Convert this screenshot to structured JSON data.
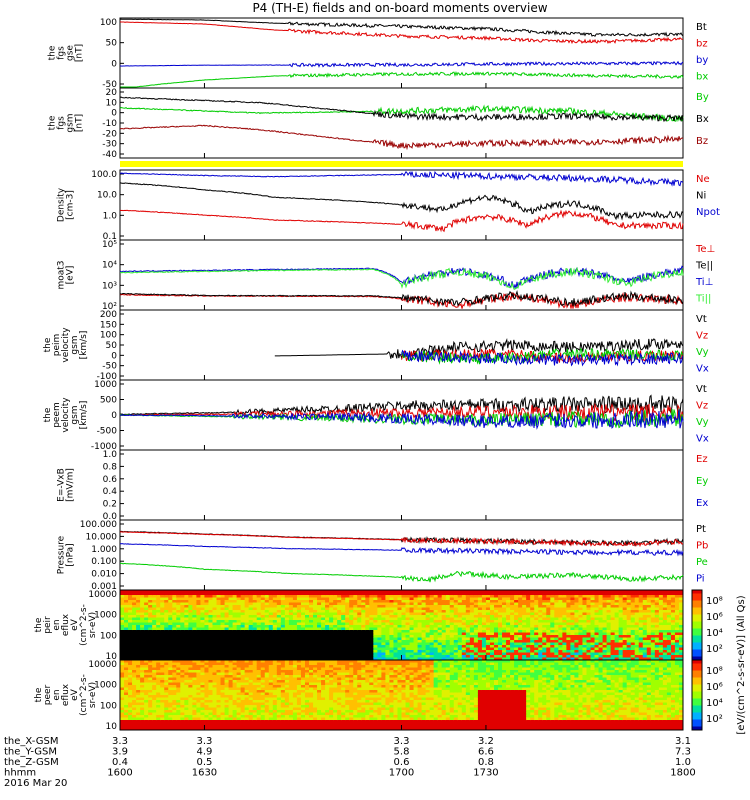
{
  "title": "P4 (TH-E) fields and on-board moments overview",
  "colors": {
    "black": "#000000",
    "red": "#e00000",
    "darkred": "#990000",
    "blue": "#0000d0",
    "green": "#00cc00",
    "lime": "#33ee33",
    "yellow": "#ffff00"
  },
  "chart_data": [
    {
      "type": "line",
      "ylabel": [
        "the",
        "fgs",
        "gse",
        "[nT]"
      ],
      "ylim": [
        -70,
        105
      ],
      "yticks": [
        "100",
        "50",
        "0",
        "-50"
      ],
      "series": [
        {
          "name": "Bt",
          "color": "#000000",
          "values": [
            [
              1600,
              102
            ],
            [
              1630,
              100
            ],
            [
              1655,
              92
            ],
            [
              1700,
              84
            ],
            [
              1730,
              78
            ],
            [
              1750,
              70
            ],
            [
              1760,
              66
            ],
            [
              1770,
              63
            ],
            [
              1800,
              64
            ]
          ]
        },
        {
          "name": "bz",
          "color": "#e00000",
          "values": [
            [
              1600,
              95
            ],
            [
              1630,
              90
            ],
            [
              1655,
              75
            ],
            [
              1700,
              60
            ],
            [
              1730,
              55
            ],
            [
              1750,
              48
            ],
            [
              1770,
              46
            ],
            [
              1800,
              52
            ]
          ]
        },
        {
          "name": "by",
          "color": "#0000d0",
          "values": [
            [
              1600,
              -15
            ],
            [
              1630,
              -13
            ],
            [
              1700,
              -12
            ],
            [
              1730,
              -10
            ],
            [
              1800,
              -8
            ]
          ]
        },
        {
          "name": "bx",
          "color": "#00cc00",
          "values": [
            [
              1600,
              -72
            ],
            [
              1615,
              -60
            ],
            [
              1630,
              -50
            ],
            [
              1655,
              -40
            ],
            [
              1700,
              -35
            ],
            [
              1730,
              -34
            ],
            [
              1760,
              -38
            ],
            [
              1800,
              -42
            ]
          ]
        }
      ]
    },
    {
      "type": "line",
      "ylabel": [
        "the",
        "fgs",
        "gsm",
        "[nT]"
      ],
      "ylim": [
        -45,
        22
      ],
      "yticks": [
        "20",
        "10",
        "0",
        "-10",
        "-20",
        "-30",
        "-40"
      ],
      "series": [
        {
          "name": "By",
          "color": "#00cc00",
          "values": [
            [
              1600,
              3
            ],
            [
              1630,
              0
            ],
            [
              1650,
              -2
            ],
            [
              1700,
              0
            ],
            [
              1730,
              2
            ],
            [
              1760,
              0
            ],
            [
              1800,
              -8
            ]
          ]
        },
        {
          "name": "Bx",
          "color": "#000000",
          "values": [
            [
              1600,
              13
            ],
            [
              1630,
              10
            ],
            [
              1650,
              8
            ],
            [
              1700,
              -5
            ],
            [
              1730,
              -6
            ],
            [
              1760,
              -5
            ],
            [
              1800,
              -7
            ]
          ]
        },
        {
          "name": "Bz",
          "color": "#990000",
          "values": [
            [
              1600,
              -17
            ],
            [
              1630,
              -14
            ],
            [
              1650,
              -18
            ],
            [
              1700,
              -33
            ],
            [
              1730,
              -31
            ],
            [
              1760,
              -30
            ],
            [
              1800,
              -27
            ]
          ]
        }
      ]
    },
    {
      "type": "line",
      "log": true,
      "ylabel": [
        "Density",
        "[cm-3]"
      ],
      "ylim": [
        0.05,
        300
      ],
      "yticks": [
        "100.0",
        "10.0",
        "1.0",
        "0.1"
      ],
      "series": [
        {
          "name": "Ne",
          "color": "#e00000",
          "values": [
            [
              1600,
              2
            ],
            [
              1630,
              1.1
            ],
            [
              1655,
              0.6
            ],
            [
              1700,
              0.35
            ],
            [
              1715,
              0.2
            ],
            [
              1730,
              1
            ],
            [
              1745,
              0.3
            ],
            [
              1760,
              1.5
            ],
            [
              1775,
              0.3
            ],
            [
              1800,
              0.3
            ]
          ]
        },
        {
          "name": "Ni",
          "color": "#000000",
          "values": [
            [
              1600,
              60
            ],
            [
              1630,
              25
            ],
            [
              1655,
              10
            ],
            [
              1700,
              4
            ],
            [
              1715,
              2
            ],
            [
              1730,
              10
            ],
            [
              1745,
              1.5
            ],
            [
              1760,
              5
            ],
            [
              1775,
              1
            ],
            [
              1800,
              1.2
            ]
          ]
        },
        {
          "name": "Npot",
          "color": "#0000d0",
          "values": [
            [
              1600,
              200
            ],
            [
              1630,
              150
            ],
            [
              1655,
              130
            ],
            [
              1700,
              170
            ],
            [
              1730,
              140
            ],
            [
              1760,
              110
            ],
            [
              1800,
              60
            ]
          ]
        },
        {
          "name": "",
          "color": "#000000",
          "values": []
        }
      ]
    },
    {
      "type": "line",
      "log": true,
      "ylabel": [
        "moat3",
        "[eV]"
      ],
      "ylim": [
        100,
        100000
      ],
      "yticks": [
        "10⁵",
        "10⁴",
        "10³",
        "10²"
      ],
      "series": [
        {
          "name": "Te⊥",
          "color": "#e00000",
          "values": [
            [
              1600,
              450
            ],
            [
              1630,
              400
            ],
            [
              1690,
              380
            ],
            [
              1720,
              150
            ],
            [
              1740,
              400
            ],
            [
              1760,
              150
            ],
            [
              1780,
              350
            ],
            [
              1800,
              250
            ]
          ]
        },
        {
          "name": "Te||",
          "color": "#000000",
          "values": [
            [
              1600,
              500
            ],
            [
              1630,
              420
            ],
            [
              1690,
              400
            ],
            [
              1720,
              200
            ],
            [
              1740,
              420
            ],
            [
              1760,
              200
            ],
            [
              1780,
              400
            ],
            [
              1800,
              260
            ]
          ]
        },
        {
          "name": "Ti⊥",
          "color": "#0000d0",
          "values": [
            [
              1600,
              4500
            ],
            [
              1630,
              5000
            ],
            [
              1690,
              6000
            ],
            [
              1700,
              1500
            ],
            [
              1720,
              5000
            ],
            [
              1740,
              1000
            ],
            [
              1760,
              5000
            ],
            [
              1780,
              1500
            ],
            [
              1800,
              5000
            ]
          ]
        },
        {
          "name": "Ti||",
          "color": "#33ee33",
          "values": [
            [
              1600,
              4000
            ],
            [
              1630,
              4500
            ],
            [
              1690,
              5500
            ],
            [
              1700,
              1200
            ],
            [
              1720,
              4500
            ],
            [
              1740,
              900
            ],
            [
              1760,
              4500
            ],
            [
              1780,
              1200
            ],
            [
              1800,
              4500
            ]
          ]
        }
      ]
    },
    {
      "type": "line",
      "ylabel": [
        "the",
        "peim",
        "velocity",
        "gsm",
        "[km/s]"
      ],
      "ylim": [
        -110,
        210
      ],
      "yticks": [
        "200",
        "150",
        "100",
        "50",
        "0",
        "-50",
        "-100"
      ],
      "series": [
        {
          "name": "Vt",
          "color": "#000000",
          "values": [
            [
              1655,
              0
            ],
            [
              1700,
              10
            ],
            [
              1720,
              40
            ],
            [
              1740,
              50
            ],
            [
              1760,
              40
            ],
            [
              1800,
              60
            ]
          ]
        },
        {
          "name": "Vz",
          "color": "#e00000",
          "values": [
            [
              1700,
              0
            ],
            [
              1730,
              10
            ],
            [
              1760,
              -10
            ],
            [
              1800,
              5
            ]
          ]
        },
        {
          "name": "Vy",
          "color": "#00cc00",
          "values": [
            [
              1700,
              0
            ],
            [
              1730,
              -15
            ],
            [
              1760,
              10
            ],
            [
              1800,
              0
            ]
          ]
        },
        {
          "name": "Vx",
          "color": "#0000d0",
          "values": [
            [
              1700,
              0
            ],
            [
              1730,
              -10
            ],
            [
              1760,
              -20
            ],
            [
              1800,
              -10
            ]
          ]
        }
      ]
    },
    {
      "type": "line",
      "ylabel": [
        "the",
        "peem",
        "velocity",
        "gsm",
        "[km/s]"
      ],
      "ylim": [
        -1050,
        1050
      ],
      "yticks": [
        "1000",
        "500",
        "0",
        "-500",
        "-1000"
      ],
      "series": [
        {
          "name": "Vt",
          "color": "#000000",
          "values": [
            [
              1600,
              20
            ],
            [
              1640,
              80
            ],
            [
              1680,
              200
            ],
            [
              1700,
              280
            ],
            [
              1730,
              300
            ],
            [
              1760,
              320
            ],
            [
              1800,
              300
            ]
          ]
        },
        {
          "name": "Vz",
          "color": "#e00000",
          "values": [
            [
              1600,
              0
            ],
            [
              1680,
              50
            ],
            [
              1730,
              100
            ],
            [
              1800,
              50
            ]
          ]
        },
        {
          "name": "Vy",
          "color": "#00cc00",
          "values": [
            [
              1600,
              0
            ],
            [
              1680,
              -100
            ],
            [
              1730,
              -150
            ],
            [
              1800,
              -100
            ]
          ]
        },
        {
          "name": "Vx",
          "color": "#0000d0",
          "values": [
            [
              1600,
              0
            ],
            [
              1680,
              -50
            ],
            [
              1730,
              -200
            ],
            [
              1800,
              -100
            ]
          ]
        }
      ]
    },
    {
      "type": "line",
      "ylabel": [
        "E=-VxB",
        "[mV/m]"
      ],
      "ylim": [
        0,
        1
      ],
      "yticks": [
        "1.0",
        "0.8",
        "0.6",
        "0.4",
        "0.2",
        "0.0"
      ],
      "series": [
        {
          "name": "Ez",
          "color": "#e00000",
          "values": []
        },
        {
          "name": "Ey",
          "color": "#00cc00",
          "values": []
        },
        {
          "name": "Ex",
          "color": "#0000d0",
          "values": []
        }
      ]
    },
    {
      "type": "line",
      "log": true,
      "ylabel": [
        "Pressure",
        "[nPa]"
      ],
      "ylim": [
        0.001,
        100
      ],
      "yticks": [
        "100.000",
        "10.000",
        "1.000",
        "0.100",
        "0.010",
        "0.001"
      ],
      "series": [
        {
          "name": "Pt",
          "color": "#000000",
          "values": [
            [
              1600,
              15
            ],
            [
              1630,
              10
            ],
            [
              1660,
              6
            ],
            [
              1700,
              4
            ],
            [
              1730,
              3.2
            ],
            [
              1760,
              2.5
            ],
            [
              1780,
              2.2
            ],
            [
              1800,
              3
            ]
          ]
        },
        {
          "name": "Pb",
          "color": "#e00000",
          "values": [
            [
              1600,
              14
            ],
            [
              1630,
              9.5
            ],
            [
              1660,
              5.8
            ],
            [
              1700,
              3.8
            ],
            [
              1730,
              3
            ],
            [
              1760,
              2.3
            ],
            [
              1780,
              2
            ],
            [
              1800,
              2.8
            ]
          ]
        },
        {
          "name": "Pe",
          "color": "#00cc00",
          "values": [
            [
              1600,
              0.08
            ],
            [
              1630,
              0.03
            ],
            [
              1660,
              0.015
            ],
            [
              1700,
              0.008
            ],
            [
              1710,
              0.005
            ],
            [
              1720,
              0.015
            ],
            [
              1740,
              0.008
            ],
            [
              1760,
              0.012
            ],
            [
              1780,
              0.006
            ],
            [
              1800,
              0.008
            ]
          ]
        },
        {
          "name": "Pi",
          "color": "#0000d0",
          "values": [
            [
              1600,
              2
            ],
            [
              1630,
              1.3
            ],
            [
              1660,
              0.9
            ],
            [
              1700,
              0.7
            ],
            [
              1730,
              0.6
            ],
            [
              1760,
              0.5
            ],
            [
              1800,
              0.45
            ]
          ]
        }
      ]
    },
    {
      "type": "heatmap",
      "ylabel": [
        "the",
        "peir",
        "en",
        "eflux",
        "eV",
        "(cm^2-s-",
        "sr-eV)"
      ],
      "yticks": [
        "10000",
        "1000",
        "100",
        "10"
      ],
      "colorbar_label": "[eV/(cm^2-s-sr-eV)] (All Qs)",
      "colorbar_ticks": [
        "10⁸",
        "10⁶",
        "10⁴",
        "10²"
      ]
    },
    {
      "type": "heatmap",
      "ylabel": [
        "the",
        "peer",
        "en",
        "eflux",
        "eV",
        "(cm^2-s-",
        "sr-eV)"
      ],
      "yticks": [
        "10000",
        "1000",
        "100",
        "10"
      ],
      "colorbar_label": "[eV/(cm^2-s-sr-eV)] (All Qs)",
      "colorbar_ticks": [
        "10⁸",
        "10⁶",
        "10⁴",
        "10²"
      ]
    }
  ],
  "xaxis": {
    "range": [
      1600,
      1800
    ],
    "ticks": [
      1600,
      1630,
      1700,
      1730,
      1800
    ],
    "rows": [
      {
        "label": "the_X-GSM",
        "values": [
          "3.3",
          "3.3",
          "3.3",
          "3.2",
          "3.1"
        ]
      },
      {
        "label": "the_Y-GSM",
        "values": [
          "3.9",
          "4.9",
          "5.8",
          "6.6",
          "7.3"
        ]
      },
      {
        "label": "the_Z-GSM",
        "values": [
          "0.4",
          "0.5",
          "0.6",
          "0.8",
          "1.0"
        ]
      },
      {
        "label": "hhmm",
        "values": [
          "1600",
          "1630",
          "1700",
          "1730",
          "1800"
        ]
      }
    ],
    "date": "2016 Mar 20"
  }
}
